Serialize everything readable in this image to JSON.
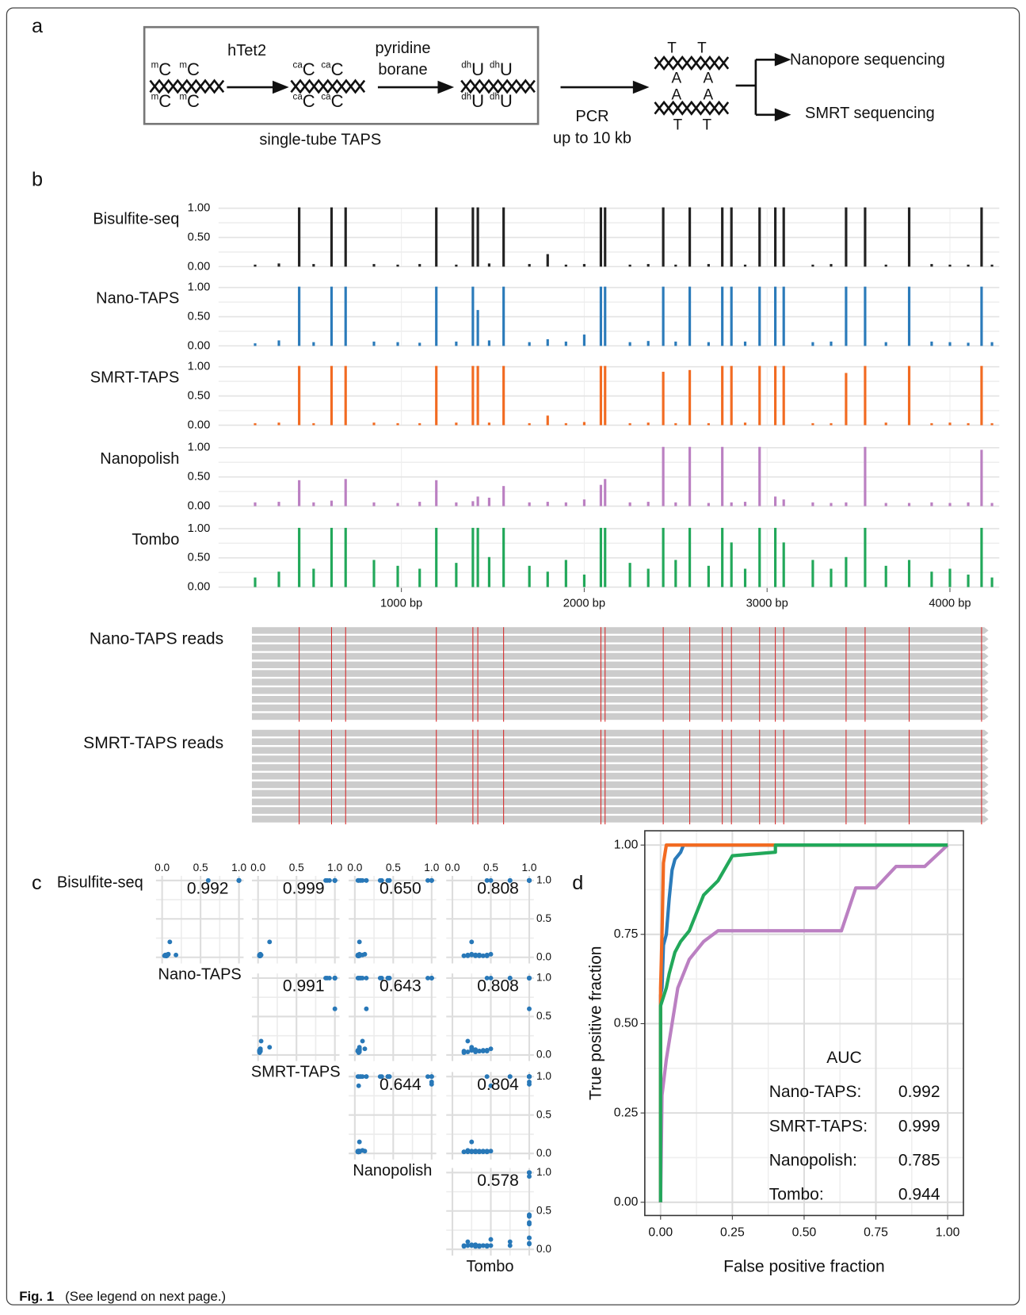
{
  "panel_labels": {
    "a": "a",
    "b": "b",
    "c": "c",
    "d": "d"
  },
  "diagram": {
    "bases": [
      {
        "sup": "m",
        "base": "C",
        "color": "#2b7bba"
      },
      {
        "sup": "ca",
        "base": "C",
        "color": "#22a85a"
      },
      {
        "sup": "dh",
        "base": "U",
        "color": "#f7941d"
      }
    ],
    "pair": {
      "outer": "T",
      "inner": "A",
      "outer_color": "#f7941d",
      "inner_color": "#22a85a"
    },
    "steps": [
      "hTet2",
      "pyridine",
      "borane"
    ],
    "box_label": "single-tube TAPS",
    "pcr": [
      "PCR",
      "up to 10 kb"
    ],
    "outputs": [
      "Nanopore sequencing",
      "SMRT sequencing"
    ]
  },
  "chart_data": [
    {
      "type": "bar",
      "x": [
        200,
        330,
        441,
        520,
        618,
        695,
        850,
        980,
        1100,
        1191,
        1300,
        1391,
        1418,
        1480,
        1559,
        1700,
        1800,
        1900,
        2000,
        2091,
        2114,
        2250,
        2350,
        2432,
        2500,
        2577,
        2680,
        2755,
        2805,
        2880,
        2959,
        3045,
        3091,
        3250,
        3350,
        3432,
        3536,
        3650,
        3777,
        3900,
        4000,
        4100,
        4173,
        4230
      ],
      "series": [
        {
          "name": "Bisulfite-seq",
          "color": "#222222",
          "values": [
            0.02,
            0.04,
            1,
            0.03,
            1,
            1,
            0.03,
            0.02,
            0.03,
            1,
            0.02,
            1,
            1,
            0.04,
            1,
            0.03,
            0.2,
            0.02,
            0.03,
            1,
            1,
            0.02,
            0.03,
            1,
            0.02,
            1,
            0.03,
            1,
            1,
            0.02,
            1,
            1,
            1,
            0.02,
            0.03,
            1,
            1,
            0.02,
            1,
            0.03,
            0.02,
            0.02,
            1,
            0.02
          ]
        },
        {
          "name": "Nano-TAPS",
          "color": "#2b7bba",
          "values": [
            0.03,
            0.08,
            1,
            0.05,
            1,
            1,
            0.06,
            0.05,
            0.04,
            1,
            0.06,
            1,
            0.6,
            0.08,
            1,
            0.05,
            0.1,
            0.06,
            0.18,
            1,
            1,
            0.05,
            0.07,
            1,
            0.06,
            1,
            0.05,
            1,
            1,
            0.06,
            1,
            1,
            1,
            0.05,
            0.06,
            1,
            1,
            0.05,
            1,
            0.06,
            0.05,
            0.04,
            1,
            0.05
          ]
        },
        {
          "name": "SMRT-TAPS",
          "color": "#f26b22",
          "values": [
            0.02,
            0.03,
            1,
            0.02,
            1,
            1,
            0.03,
            0.02,
            0.02,
            1,
            0.03,
            1,
            1,
            0.03,
            1,
            0.02,
            0.15,
            0.02,
            0.04,
            1,
            1,
            0.02,
            0.03,
            0.9,
            0.02,
            0.93,
            0.02,
            1,
            1,
            0.03,
            1,
            1,
            1,
            0.02,
            0.02,
            0.88,
            1,
            0.03,
            1,
            0.02,
            0.03,
            0.02,
            1,
            0.02
          ]
        },
        {
          "name": "Nanopolish",
          "color": "#bb80c2",
          "values": [
            0.05,
            0.06,
            0.43,
            0.05,
            0.08,
            0.45,
            0.05,
            0.04,
            0.06,
            0.43,
            0.05,
            0.07,
            0.15,
            0.13,
            0.33,
            0.05,
            0.06,
            0.05,
            0.1,
            0.35,
            0.45,
            0.05,
            0.06,
            1,
            0.05,
            1,
            0.04,
            1,
            0.05,
            0.06,
            1,
            0.15,
            0.1,
            0.05,
            0.04,
            0.05,
            1,
            0.04,
            0.04,
            0.05,
            0.04,
            0.05,
            0.95,
            0.04
          ]
        },
        {
          "name": "Tombo",
          "color": "#22a85a",
          "values": [
            0.15,
            0.25,
            1,
            0.3,
            1,
            1,
            0.45,
            0.35,
            0.3,
            1,
            0.4,
            1,
            1,
            0.5,
            1,
            0.35,
            0.25,
            0.45,
            0.2,
            1,
            1,
            0.4,
            0.3,
            1,
            0.45,
            1,
            0.35,
            1,
            0.75,
            0.3,
            1,
            1,
            0.75,
            0.45,
            0.3,
            0.5,
            1,
            0.35,
            0.45,
            0.25,
            0.3,
            0.2,
            1,
            0.15
          ]
        }
      ],
      "xlim": [
        0,
        4270
      ],
      "xticks": [
        {
          "value": 1000,
          "label": "1000 bp"
        },
        {
          "value": 2000,
          "label": "2000 bp"
        },
        {
          "value": 3000,
          "label": "3000 bp"
        },
        {
          "value": 4000,
          "label": "4000 bp"
        }
      ],
      "ylim": [
        0,
        1
      ],
      "yticks": [
        {
          "value": 0,
          "label": "0.00"
        },
        {
          "value": 0.5,
          "label": "0.50"
        },
        {
          "value": 1,
          "label": "1.00"
        }
      ],
      "grid": true
    },
    {
      "type": "scatter-matrix",
      "color": "#2878b8",
      "variables": [
        "Bisulfite-seq",
        "Nano-TAPS",
        "SMRT-TAPS",
        "Nanopolish",
        "Tombo"
      ],
      "correlations": [
        [
          "0.992",
          "0.999",
          "0.650",
          "0.808"
        ],
        [
          "0.991",
          "0.643",
          "0.808"
        ],
        [
          "0.644",
          "0.804"
        ],
        [
          "0.578"
        ]
      ],
      "xlim": [
        -0.08,
        1.06
      ],
      "ylim": [
        -0.08,
        1.06
      ],
      "xticks": [
        {
          "value": 0,
          "label": "0.0"
        },
        {
          "value": 0.5,
          "label": "0.5"
        },
        {
          "value": 1,
          "label": "1.0"
        }
      ],
      "yticks": [
        {
          "value": 0,
          "label": "0.0"
        },
        {
          "value": 0.5,
          "label": "0.5"
        },
        {
          "value": 1,
          "label": "1.0"
        }
      ],
      "grid": true
    },
    {
      "type": "line",
      "x_label": "False positive fraction",
      "y_label": "True positive fraction",
      "legend_title": "AUC",
      "series": [
        {
          "name": "Nano-TAPS:",
          "auc": 0.992,
          "color": "#2b7bba",
          "x": [
            0,
            0,
            0.005,
            0.01,
            0.02,
            0.03,
            0.04,
            0.05,
            0.07,
            0.08,
            1
          ],
          "y": [
            0,
            0.58,
            0.6,
            0.72,
            0.75,
            0.85,
            0.93,
            0.96,
            0.98,
            1,
            1
          ]
        },
        {
          "name": "SMRT-TAPS:",
          "auc": 0.999,
          "color": "#f26b22",
          "x": [
            0,
            0,
            0.005,
            0.01,
            0.02,
            1
          ],
          "y": [
            0,
            0.6,
            0.75,
            0.95,
            1,
            1
          ]
        },
        {
          "name": "Nanopolish:",
          "auc": 0.785,
          "color": "#bb80c2",
          "x": [
            0,
            0.005,
            0.02,
            0.04,
            0.06,
            0.1,
            0.15,
            0.2,
            0.63,
            0.68,
            0.75,
            0.82,
            0.92,
            1
          ],
          "y": [
            0,
            0.3,
            0.4,
            0.5,
            0.6,
            0.68,
            0.73,
            0.76,
            0.76,
            0.88,
            0.88,
            0.94,
            0.94,
            1
          ]
        },
        {
          "name": "Tombo:",
          "auc": 0.944,
          "color": "#22a85a",
          "x": [
            0,
            0,
            0.02,
            0.03,
            0.05,
            0.07,
            0.1,
            0.12,
            0.15,
            0.2,
            0.25,
            0.4,
            0.4,
            1
          ],
          "y": [
            0,
            0.55,
            0.6,
            0.64,
            0.7,
            0.73,
            0.76,
            0.8,
            0.86,
            0.9,
            0.97,
            0.98,
            1,
            1
          ]
        }
      ],
      "xlim": [
        -0.055,
        1.055
      ],
      "ylim": [
        -0.037,
        1.04
      ],
      "xticks": [
        {
          "value": 0,
          "label": "0.00"
        },
        {
          "value": 0.25,
          "label": "0.25"
        },
        {
          "value": 0.5,
          "label": "0.50"
        },
        {
          "value": 0.75,
          "label": "0.75"
        },
        {
          "value": 1,
          "label": "1.00"
        }
      ],
      "yticks": [
        {
          "value": 0,
          "label": "0.00"
        },
        {
          "value": 0.25,
          "label": "0.25"
        },
        {
          "value": 0.5,
          "label": "0.50"
        },
        {
          "value": 0.75,
          "label": "0.75"
        },
        {
          "value": 1,
          "label": "1.00"
        }
      ],
      "grid": true
    }
  ],
  "reads": {
    "nano": "Nano-TAPS reads",
    "smrt": "SMRT-TAPS reads"
  },
  "caption": {
    "label": "Fig. 1",
    "text": "(See legend on next page.)"
  }
}
